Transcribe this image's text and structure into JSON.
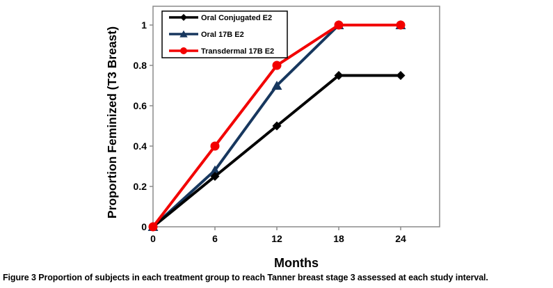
{
  "figure": {
    "caption_label": "Figure 3",
    "caption_text": "Proportion of subjects in each treatment group to reach Tanner breast stage 3 assessed at each study interval."
  },
  "chart_data": {
    "type": "line",
    "title": "",
    "xlabel": "Months",
    "ylabel": "Proportion Feminized (T3 Breast)",
    "x": [
      0,
      6,
      12,
      18,
      24
    ],
    "x_tick_labels": [
      "0",
      "6",
      "12",
      "18",
      "24"
    ],
    "y_ticks": [
      0,
      0.2,
      0.4,
      0.6,
      0.8,
      1
    ],
    "y_tick_labels": [
      "0",
      "0.2",
      "0.4",
      "0.6",
      "0.8",
      "1"
    ],
    "xlim": [
      0,
      27.8
    ],
    "ylim": [
      0,
      1.09
    ],
    "grid": false,
    "legend_position": "top-left-inside",
    "series": [
      {
        "name": "Oral Conjugated E2",
        "color": "#000000",
        "marker": "diamond",
        "values": [
          0,
          0.25,
          0.5,
          0.75,
          0.75
        ]
      },
      {
        "name": "Oral 17B E2",
        "color": "#17375e",
        "marker": "triangle",
        "values": [
          0,
          0.28,
          0.7,
          1,
          1
        ]
      },
      {
        "name": "Transdermal 17B E2",
        "color": "#f20000",
        "marker": "circle",
        "values": [
          0,
          0.4,
          0.8,
          1,
          1
        ]
      }
    ],
    "colors": {
      "axis": "#8a8a8a",
      "tick_label": "#000000",
      "legend_border": "#000000",
      "background": "#ffffff"
    }
  }
}
